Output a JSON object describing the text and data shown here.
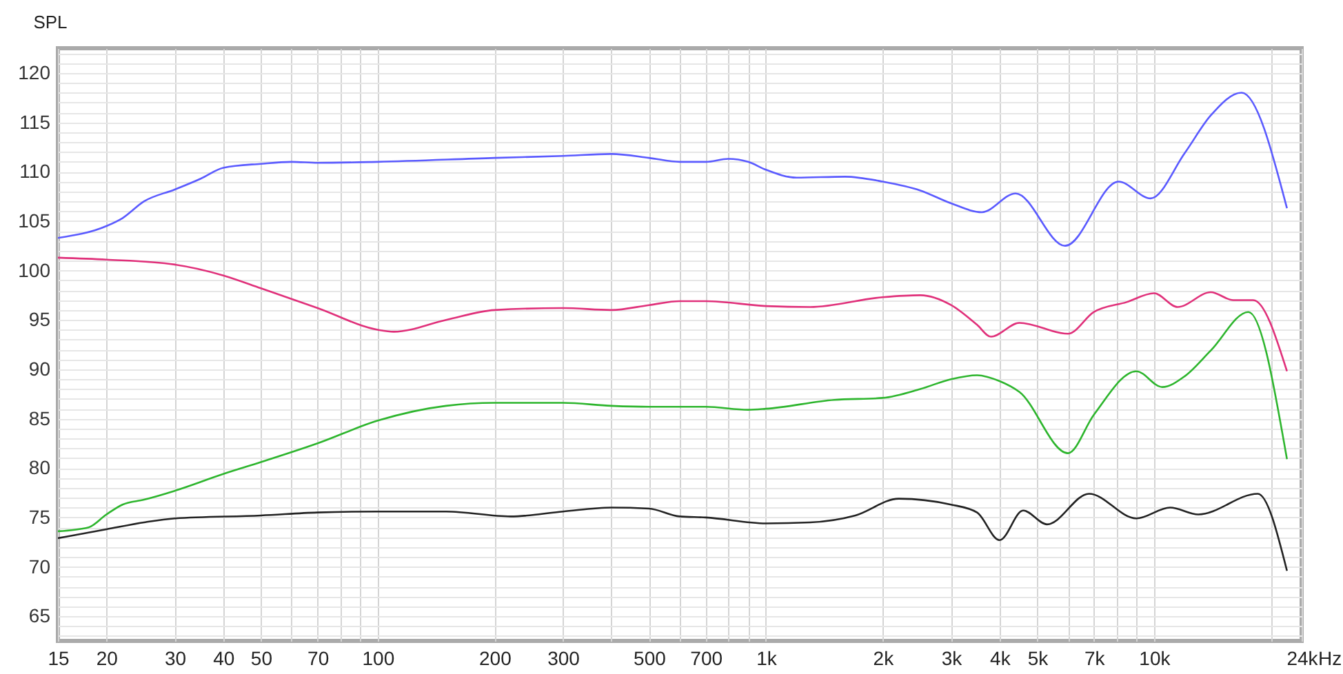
{
  "chart_data": {
    "type": "line",
    "ylabel": "SPL",
    "xlim": [
      15,
      24000
    ],
    "ylim": [
      62.5,
      122.5
    ],
    "log": "x",
    "grid": true,
    "marker": "none",
    "line_style": "solid",
    "xticks": [
      15,
      20,
      30,
      40,
      50,
      {
        "value": 60,
        "label": null
      },
      70,
      {
        "value": 80,
        "label": null
      },
      {
        "value": 90,
        "label": null
      },
      100,
      200,
      300,
      {
        "value": 400,
        "label": null
      },
      500,
      {
        "value": 600,
        "label": null
      },
      700,
      {
        "value": 800,
        "label": null
      },
      {
        "value": 900,
        "label": null
      },
      {
        "value": 1000,
        "label": "1k"
      },
      {
        "value": 2000,
        "label": "2k"
      },
      {
        "value": 3000,
        "label": "3k"
      },
      {
        "value": 4000,
        "label": "4k"
      },
      {
        "value": 5000,
        "label": "5k"
      },
      {
        "value": 6000,
        "label": null
      },
      {
        "value": 7000,
        "label": "7k"
      },
      {
        "value": 8000,
        "label": null
      },
      {
        "value": 9000,
        "label": null
      },
      {
        "value": 10000,
        "label": "10k"
      },
      {
        "value": 20000,
        "label": null
      },
      {
        "value": 24000,
        "label": "24k"
      }
    ],
    "xlabel": "Hz",
    "yticks": [
      {
        "value": 63,
        "label": null
      },
      {
        "value": 64,
        "label": null
      },
      65,
      {
        "value": 66,
        "label": null
      },
      {
        "value": 67,
        "label": null
      },
      {
        "value": 68,
        "label": null
      },
      {
        "value": 69,
        "label": null
      },
      70,
      {
        "value": 71,
        "label": null
      },
      {
        "value": 72,
        "label": null
      },
      {
        "value": 73,
        "label": null
      },
      {
        "value": 74,
        "label": null
      },
      75,
      {
        "value": 76,
        "label": null
      },
      {
        "value": 77,
        "label": null
      },
      {
        "value": 78,
        "label": null
      },
      {
        "value": 79,
        "label": null
      },
      80,
      {
        "value": 81,
        "label": null
      },
      {
        "value": 82,
        "label": null
      },
      {
        "value": 83,
        "label": null
      },
      {
        "value": 84,
        "label": null
      },
      85,
      {
        "value": 86,
        "label": null
      },
      {
        "value": 87,
        "label": null
      },
      {
        "value": 88,
        "label": null
      },
      {
        "value": 89,
        "label": null
      },
      90,
      {
        "value": 91,
        "label": null
      },
      {
        "value": 92,
        "label": null
      },
      {
        "value": 93,
        "label": null
      },
      {
        "value": 94,
        "label": null
      },
      95,
      {
        "value": 96,
        "label": null
      },
      {
        "value": 97,
        "label": null
      },
      {
        "value": 98,
        "label": null
      },
      {
        "value": 99,
        "label": null
      },
      100,
      {
        "value": 101,
        "label": null
      },
      {
        "value": 102,
        "label": null
      },
      {
        "value": 103,
        "label": null
      },
      {
        "value": 104,
        "label": null
      },
      105,
      {
        "value": 106,
        "label": null
      },
      {
        "value": 107,
        "label": null
      },
      {
        "value": 108,
        "label": null
      },
      {
        "value": 109,
        "label": null
      },
      110,
      {
        "value": 111,
        "label": null
      },
      {
        "value": 112,
        "label": null
      },
      {
        "value": 113,
        "label": null
      },
      {
        "value": 114,
        "label": null
      },
      115,
      {
        "value": 116,
        "label": null
      },
      {
        "value": 117,
        "label": null
      },
      {
        "value": 118,
        "label": null
      },
      {
        "value": 119,
        "label": null
      },
      120,
      {
        "value": 121,
        "label": null
      },
      {
        "value": 122,
        "label": null
      }
    ],
    "series": [
      {
        "color": "#5a5aff",
        "x": [
          15,
          20,
          22,
          25,
          30,
          35,
          40,
          50,
          60,
          70,
          100,
          200,
          300,
          400,
          500,
          600,
          700,
          800,
          900,
          1000,
          1200,
          1600,
          2000,
          2500,
          3000,
          3600,
          4400,
          5900,
          8100,
          9800,
          12000,
          14000,
          16800,
          22000
        ],
        "values": [
          103.3,
          104.5,
          105.3,
          107.0,
          108.2,
          109.3,
          110.4,
          110.8,
          111.0,
          110.9,
          111.0,
          111.4,
          111.6,
          111.8,
          111.4,
          111.0,
          111.0,
          111.3,
          111.0,
          110.2,
          109.4,
          109.5,
          109.0,
          108.1,
          106.8,
          105.9,
          107.8,
          102.5,
          109.0,
          107.3,
          111.9,
          115.7,
          118.0,
          106.3
        ]
      },
      {
        "color": "#e0307a",
        "x": [
          15,
          20,
          30,
          40,
          50,
          70,
          100,
          110,
          150,
          200,
          300,
          400,
          500,
          600,
          700,
          1000,
          1300,
          2000,
          2500,
          3000,
          3500,
          3800,
          4500,
          6000,
          7000,
          8500,
          10000,
          11500,
          14000,
          16000,
          18000,
          22000
        ],
        "values": [
          101.3,
          101.1,
          100.6,
          99.5,
          98.2,
          96.2,
          94.0,
          93.8,
          95.0,
          96.0,
          96.2,
          96.0,
          96.5,
          96.9,
          96.9,
          96.4,
          96.3,
          97.3,
          97.5,
          96.5,
          94.5,
          93.3,
          94.7,
          93.6,
          95.8,
          96.8,
          97.7,
          96.3,
          97.8,
          97.0,
          97.0,
          89.8
        ]
      },
      {
        "color": "#2db52d",
        "x": [
          15,
          18,
          20,
          22,
          25,
          30,
          40,
          50,
          70,
          100,
          150,
          200,
          300,
          400,
          500,
          700,
          900,
          1000,
          1500,
          2000,
          2500,
          3000,
          3500,
          4000,
          4500,
          6000,
          7000,
          9000,
          10500,
          12000,
          14000,
          17500,
          22000
        ],
        "values": [
          73.6,
          74.0,
          75.3,
          76.3,
          76.8,
          77.7,
          79.4,
          80.6,
          82.5,
          84.8,
          86.3,
          86.6,
          86.6,
          86.3,
          86.2,
          86.2,
          85.9,
          86.0,
          86.9,
          87.1,
          88.0,
          89.0,
          89.4,
          88.8,
          87.7,
          81.5,
          85.4,
          89.8,
          88.2,
          89.3,
          91.9,
          95.8,
          80.9
        ]
      },
      {
        "color": "#222222",
        "x": [
          15,
          20,
          25,
          30,
          50,
          70,
          100,
          150,
          220,
          300,
          400,
          500,
          600,
          700,
          1000,
          1300,
          1700,
          2200,
          3000,
          3500,
          4000,
          4600,
          5300,
          6800,
          9000,
          11000,
          13000,
          18500,
          22000
        ],
        "values": [
          72.9,
          73.8,
          74.5,
          74.9,
          75.2,
          75.5,
          75.6,
          75.6,
          75.1,
          75.6,
          76.0,
          75.9,
          75.1,
          75.0,
          74.4,
          74.5,
          75.2,
          76.9,
          76.3,
          75.5,
          72.7,
          75.7,
          74.3,
          77.4,
          74.9,
          76.0,
          75.3,
          77.4,
          69.6
        ]
      }
    ]
  }
}
